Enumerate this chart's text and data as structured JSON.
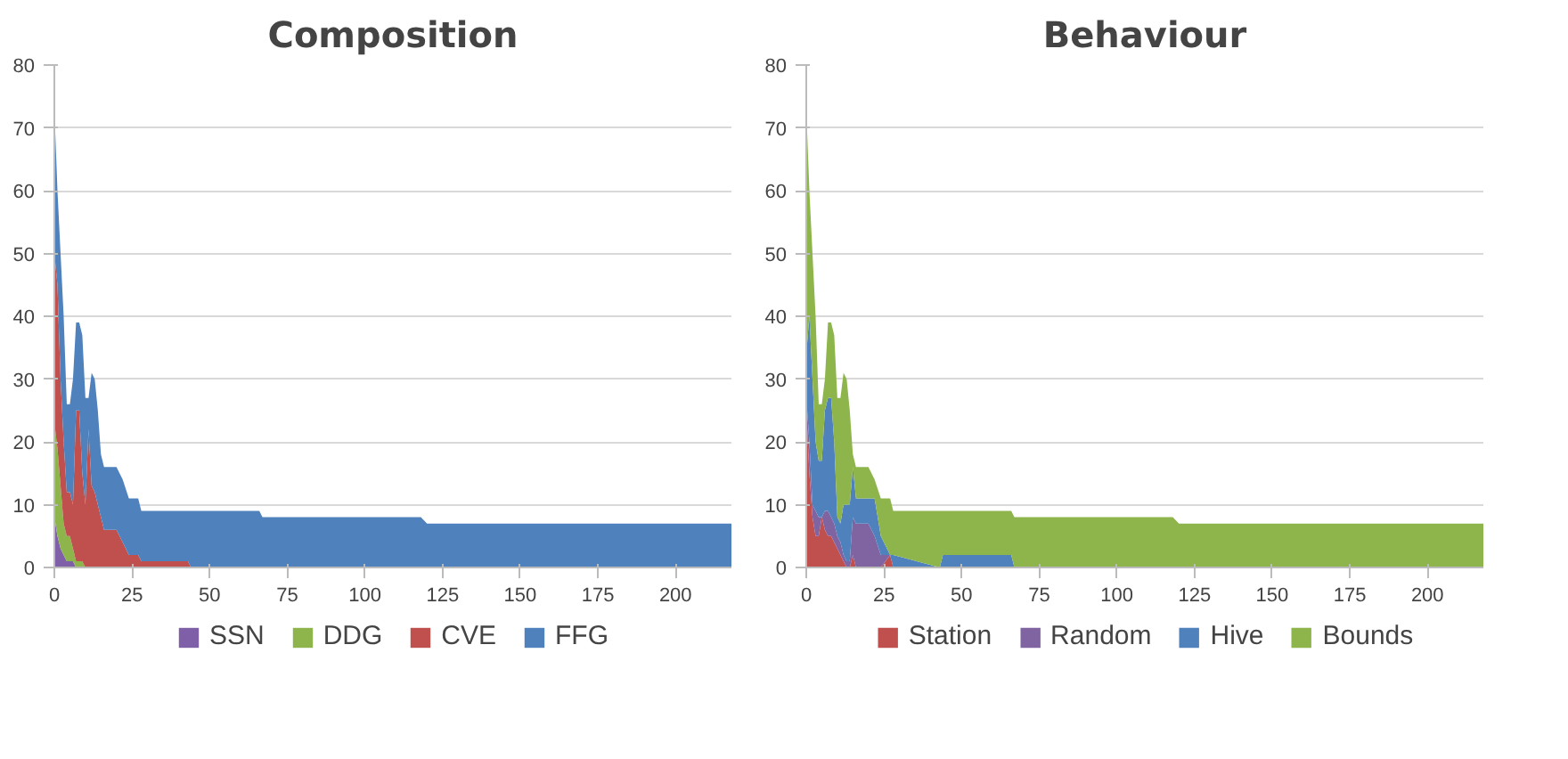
{
  "chart_data": [
    {
      "type": "area",
      "title": "Composition",
      "stacked": true,
      "grid": "y",
      "legend": "bottom",
      "xlim": [
        0,
        218
      ],
      "ylim": [
        0,
        80
      ],
      "xticks": [
        0,
        25,
        50,
        75,
        100,
        125,
        150,
        175,
        200
      ],
      "yticks": [
        0,
        10,
        20,
        30,
        40,
        50,
        60,
        70,
        80
      ],
      "x": [
        0,
        1,
        2,
        3,
        4,
        5,
        6,
        7,
        8,
        9,
        10,
        11,
        12,
        13,
        14,
        15,
        16,
        20,
        22,
        24,
        27,
        28,
        43,
        44,
        66,
        67,
        118,
        120,
        218
      ],
      "series": [
        {
          "name": "SSN",
          "color": "#7f5fa8",
          "values": [
            8,
            5,
            3,
            2,
            1,
            1,
            1,
            0,
            0,
            0,
            0,
            0,
            0,
            0,
            0,
            0,
            0,
            0,
            0,
            0,
            0,
            0,
            0,
            0,
            0,
            0,
            0,
            0,
            0
          ]
        },
        {
          "name": "DDG",
          "color": "#8db54c",
          "values": [
            15,
            14,
            10,
            5,
            4,
            4,
            2,
            1,
            1,
            1,
            0,
            0,
            0,
            0,
            0,
            0,
            0,
            0,
            0,
            0,
            0,
            0,
            0,
            0,
            0,
            0,
            0,
            0,
            0
          ]
        },
        {
          "name": "CVE",
          "color": "#c0504d",
          "values": [
            27,
            26,
            17,
            13,
            7,
            7,
            7,
            24,
            24,
            14,
            10,
            22,
            13,
            12,
            10,
            8,
            6,
            6,
            4,
            2,
            2,
            1,
            1,
            0,
            0,
            0,
            0,
            0,
            0
          ]
        },
        {
          "name": "FFG",
          "color": "#4f81bd",
          "values": [
            23,
            15,
            20,
            20,
            14,
            14,
            20,
            14,
            14,
            22,
            17,
            5,
            18,
            18,
            15,
            10,
            10,
            10,
            10,
            9,
            9,
            8,
            8,
            9,
            9,
            8,
            8,
            7,
            7
          ]
        }
      ]
    },
    {
      "type": "area",
      "title": "Behaviour",
      "stacked": true,
      "grid": "y",
      "legend": "bottom",
      "xlim": [
        0,
        218
      ],
      "ylim": [
        0,
        80
      ],
      "xticks": [
        0,
        25,
        50,
        75,
        100,
        125,
        150,
        175,
        200
      ],
      "yticks": [
        0,
        10,
        20,
        30,
        40,
        50,
        60,
        70,
        80
      ],
      "x": [
        0,
        1,
        2,
        3,
        4,
        5,
        6,
        7,
        8,
        9,
        10,
        11,
        12,
        13,
        14,
        15,
        16,
        20,
        22,
        24,
        27,
        28,
        43,
        44,
        66,
        67,
        118,
        120,
        218
      ],
      "series": [
        {
          "name": "Station",
          "color": "#c0504d",
          "values": [
            25,
            15,
            8,
            5,
            5,
            8,
            6,
            5,
            5,
            4,
            3,
            2,
            1,
            0,
            0,
            2,
            0,
            0,
            0,
            0,
            2,
            0,
            0,
            0,
            0,
            0,
            0,
            0,
            0
          ]
        },
        {
          "name": "Random",
          "color": "#8064a2",
          "values": [
            2,
            5,
            2,
            4,
            3,
            0,
            3,
            4,
            3,
            3,
            2,
            2,
            1,
            1,
            1,
            6,
            7,
            7,
            5,
            2,
            0,
            0,
            0,
            0,
            0,
            0,
            0,
            0,
            0
          ]
        },
        {
          "name": "Hive",
          "color": "#4f81bd",
          "values": [
            7,
            20,
            20,
            11,
            9,
            9,
            16,
            18,
            19,
            13,
            3,
            3,
            8,
            9,
            9,
            8,
            4,
            4,
            6,
            3,
            0,
            2,
            0,
            2,
            2,
            0,
            0,
            0,
            0
          ]
        },
        {
          "name": "Bounds",
          "color": "#8db54c",
          "values": [
            39,
            20,
            20,
            20,
            9,
            9,
            5,
            12,
            12,
            17,
            19,
            20,
            21,
            20,
            15,
            2,
            5,
            5,
            3,
            6,
            9,
            7,
            9,
            7,
            7,
            8,
            8,
            7,
            7
          ]
        }
      ]
    }
  ]
}
